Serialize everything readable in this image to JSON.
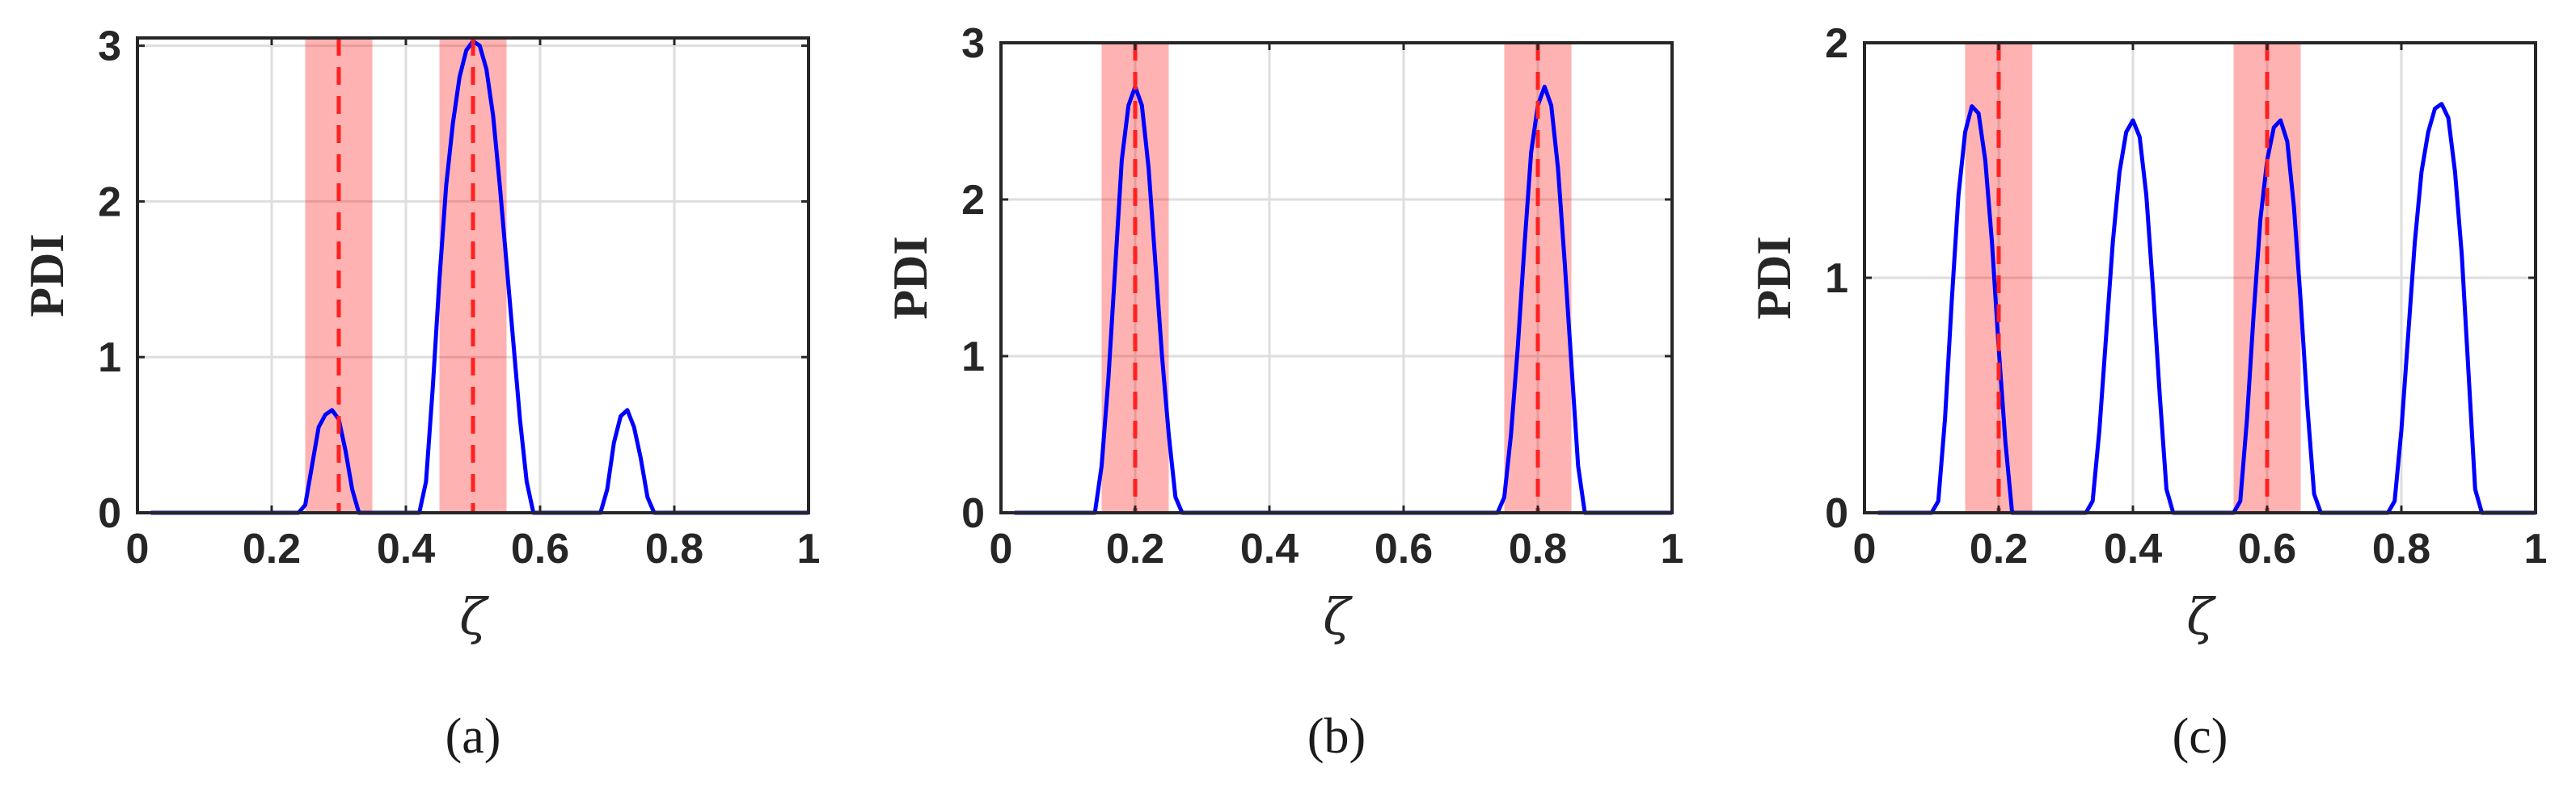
{
  "chart_data": [
    {
      "type": "line",
      "panel_label": "(a)",
      "xlabel": "ζ",
      "ylabel": "PDI",
      "xlim": [
        0,
        1
      ],
      "ylim": [
        0,
        3.05
      ],
      "xticks": [
        0,
        0.2,
        0.4,
        0.6,
        0.8,
        1
      ],
      "xtick_labels": [
        "0",
        "0.2",
        "0.4",
        "0.6",
        "0.8",
        "1"
      ],
      "yticks": [
        0,
        1,
        2,
        3
      ],
      "ytick_labels": [
        "0",
        "1",
        "2",
        "3"
      ],
      "grid": true,
      "highlight_bands": [
        [
          0.25,
          0.35
        ],
        [
          0.45,
          0.55
        ]
      ],
      "reference_lines_x": [
        0.3,
        0.5
      ],
      "series": [
        {
          "color": "#0000ff",
          "x": [
            0.02,
            0.24,
            0.25,
            0.26,
            0.27,
            0.28,
            0.29,
            0.3,
            0.31,
            0.32,
            0.33,
            0.42,
            0.43,
            0.44,
            0.45,
            0.46,
            0.47,
            0.48,
            0.49,
            0.5,
            0.51,
            0.52,
            0.53,
            0.54,
            0.55,
            0.56,
            0.57,
            0.58,
            0.59,
            0.6,
            0.69,
            0.7,
            0.71,
            0.72,
            0.73,
            0.74,
            0.75,
            0.76,
            0.77,
            1.0
          ],
          "y": [
            0,
            0,
            0.05,
            0.3,
            0.55,
            0.63,
            0.66,
            0.6,
            0.4,
            0.15,
            0,
            0,
            0.2,
            0.8,
            1.5,
            2.1,
            2.5,
            2.8,
            2.97,
            3.03,
            3.0,
            2.85,
            2.55,
            2.1,
            1.6,
            1.1,
            0.6,
            0.2,
            0,
            0,
            0,
            0.15,
            0.45,
            0.62,
            0.66,
            0.55,
            0.35,
            0.1,
            0,
            0
          ]
        }
      ]
    },
    {
      "type": "line",
      "panel_label": "(b)",
      "xlabel": "ζ",
      "ylabel": "PDI",
      "xlim": [
        0,
        1
      ],
      "ylim": [
        0,
        3.0
      ],
      "xticks": [
        0,
        0.2,
        0.4,
        0.6,
        0.8,
        1
      ],
      "xtick_labels": [
        "0",
        "0.2",
        "0.4",
        "0.6",
        "0.8",
        "1"
      ],
      "yticks": [
        0,
        1,
        2,
        3
      ],
      "ytick_labels": [
        "0",
        "1",
        "2",
        "3"
      ],
      "grid": true,
      "highlight_bands": [
        [
          0.15,
          0.25
        ],
        [
          0.75,
          0.85
        ]
      ],
      "reference_lines_x": [
        0.2,
        0.8
      ],
      "series": [
        {
          "color": "#0000ff",
          "x": [
            0.02,
            0.14,
            0.15,
            0.16,
            0.17,
            0.18,
            0.19,
            0.2,
            0.21,
            0.22,
            0.23,
            0.24,
            0.25,
            0.26,
            0.27,
            0.28,
            0.74,
            0.75,
            0.76,
            0.77,
            0.78,
            0.79,
            0.8,
            0.81,
            0.82,
            0.83,
            0.84,
            0.85,
            0.86,
            0.87,
            0.88,
            1.0
          ],
          "y": [
            0,
            0,
            0.3,
            0.85,
            1.55,
            2.25,
            2.6,
            2.72,
            2.6,
            2.2,
            1.6,
            1.0,
            0.5,
            0.1,
            0,
            0,
            0,
            0.1,
            0.5,
            1.05,
            1.7,
            2.3,
            2.6,
            2.72,
            2.6,
            2.2,
            1.6,
            0.95,
            0.3,
            0,
            0,
            0
          ]
        }
      ]
    },
    {
      "type": "line",
      "panel_label": "(c)",
      "xlabel": "ζ",
      "ylabel": "PDI",
      "xlim": [
        0,
        1
      ],
      "ylim": [
        0,
        2.0
      ],
      "xticks": [
        0,
        0.2,
        0.4,
        0.6,
        0.8,
        1
      ],
      "xtick_labels": [
        "0",
        "0.2",
        "0.4",
        "0.6",
        "0.8",
        "1"
      ],
      "yticks": [
        0,
        1,
        2
      ],
      "ytick_labels": [
        "0",
        "1",
        "2"
      ],
      "grid": true,
      "highlight_bands": [
        [
          0.15,
          0.25
        ],
        [
          0.55,
          0.65
        ]
      ],
      "reference_lines_x": [
        0.2,
        0.6
      ],
      "series": [
        {
          "color": "#0000ff",
          "x": [
            0.02,
            0.1,
            0.11,
            0.12,
            0.13,
            0.14,
            0.15,
            0.16,
            0.17,
            0.18,
            0.19,
            0.2,
            0.21,
            0.22,
            0.33,
            0.34,
            0.35,
            0.36,
            0.37,
            0.38,
            0.39,
            0.4,
            0.41,
            0.42,
            0.43,
            0.44,
            0.45,
            0.46,
            0.55,
            0.56,
            0.57,
            0.58,
            0.59,
            0.6,
            0.61,
            0.62,
            0.63,
            0.64,
            0.65,
            0.66,
            0.67,
            0.68,
            0.78,
            0.79,
            0.8,
            0.81,
            0.82,
            0.83,
            0.84,
            0.85,
            0.86,
            0.87,
            0.88,
            0.89,
            0.9,
            0.91,
            0.92,
            1.0
          ],
          "y": [
            0,
            0,
            0.05,
            0.4,
            0.9,
            1.35,
            1.62,
            1.73,
            1.7,
            1.5,
            1.15,
            0.7,
            0.3,
            0,
            0,
            0.05,
            0.35,
            0.75,
            1.15,
            1.45,
            1.62,
            1.67,
            1.6,
            1.35,
            0.95,
            0.5,
            0.1,
            0,
            0,
            0.05,
            0.4,
            0.85,
            1.25,
            1.5,
            1.64,
            1.67,
            1.58,
            1.3,
            0.9,
            0.45,
            0.08,
            0,
            0,
            0.05,
            0.35,
            0.75,
            1.15,
            1.45,
            1.62,
            1.72,
            1.74,
            1.68,
            1.45,
            1.1,
            0.6,
            0.1,
            0,
            0
          ]
        }
      ]
    }
  ]
}
